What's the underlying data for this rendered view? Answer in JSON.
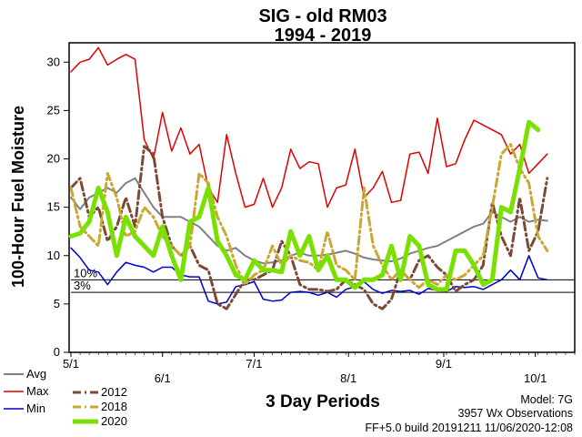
{
  "chart_data": {
    "type": "line",
    "title": "SIG - old RM03",
    "subtitle": "1994 - 2019",
    "ylabel": "100-Hour Fuel Moisture",
    "xlabel": "3 Day Periods",
    "ylim": [
      0,
      32
    ],
    "yticks": [
      0,
      5,
      10,
      15,
      20,
      25,
      30
    ],
    "xlim": [
      0,
      55
    ],
    "xticks": [
      {
        "label": "5/1",
        "x": 0
      },
      {
        "label": "6/1",
        "x": 10
      },
      {
        "label": "7/1",
        "x": 20
      },
      {
        "label": "8/1",
        "x": 30.3
      },
      {
        "label": "9/1",
        "x": 40.7
      },
      {
        "label": "10/1",
        "x": 50.7
      }
    ],
    "reference_lines": [
      {
        "label": "10%",
        "value": 7.5
      },
      {
        "label": "3%",
        "value": 6.2
      }
    ],
    "grid": false,
    "legend_left": [
      "Avg",
      "Max",
      "Min"
    ],
    "legend_right": [
      "2012",
      "2018",
      "2020"
    ],
    "series": [
      {
        "name": "Max",
        "color": "#e00000",
        "style": "solid",
        "width": 1.5,
        "values": [
          29,
          30,
          30.3,
          31.5,
          29.7,
          30.3,
          30.8,
          30.3,
          22,
          20,
          24.8,
          20.8,
          23.2,
          20.5,
          21.5,
          17,
          15.5,
          22.5,
          18.5,
          15,
          15.3,
          18,
          15,
          17,
          21,
          19,
          19.7,
          19.5,
          15,
          17,
          17.3,
          21,
          16,
          17,
          18.7,
          15.5,
          15.7,
          20.5,
          20.7,
          18.5,
          24.2,
          19.2,
          19.5,
          22,
          24,
          23.5,
          23,
          22.5,
          20.5,
          21.5,
          18.5,
          19.5,
          20.5
        ]
      },
      {
        "name": "Avg",
        "color": "#808080",
        "style": "solid",
        "width": 2,
        "values": [
          16,
          14.8,
          16,
          16.5,
          17,
          16.5,
          17.5,
          18,
          16.5,
          15,
          14,
          14,
          14,
          13.5,
          13,
          12,
          11,
          10.5,
          10.8,
          10,
          9.5,
          9.2,
          9.3,
          9.5,
          10,
          10.3,
          10,
          10,
          10.1,
          10.3,
          10.5,
          10.2,
          9.8,
          9.6,
          9.5,
          9.4,
          9.7,
          10.2,
          10.5,
          10.8,
          11,
          11.5,
          12,
          12.5,
          13,
          13.3,
          14.5,
          14,
          13.5,
          14,
          13.5,
          13.7,
          13.6
        ]
      },
      {
        "name": "Min",
        "color": "#0000cc",
        "style": "solid",
        "width": 1.5,
        "values": [
          10.8,
          9.8,
          8.5,
          8.3,
          7,
          8.3,
          9.3,
          9,
          8.8,
          8.3,
          8.8,
          8.8,
          8,
          7.8,
          7.8,
          5.3,
          5,
          5.2,
          6.8,
          7,
          7.3,
          5.5,
          5.3,
          5.4,
          6.2,
          6.3,
          6.2,
          5.9,
          6.2,
          5.7,
          6.5,
          6.8,
          7.3,
          6.5,
          6.1,
          6.4,
          6.3,
          6.4,
          6,
          6.6,
          6.4,
          6.3,
          6.8,
          6.7,
          6.8,
          6.5,
          7,
          7.5,
          8.5,
          7.5,
          10,
          7.7,
          7.5
        ]
      },
      {
        "name": "2012",
        "color": "#7b4a36",
        "style": "dashdot",
        "width": 3,
        "values": [
          17,
          18,
          14,
          15,
          11.5,
          13,
          16,
          13,
          21.3,
          20.5,
          14,
          11,
          10,
          11,
          9,
          8.5,
          5,
          4.5,
          6,
          7.5,
          7.5,
          8,
          8.5,
          11.5,
          10,
          7,
          6.5,
          6.5,
          6.3,
          6.5,
          7.5,
          7,
          6.5,
          5,
          4.5,
          5.5,
          8.5,
          7.5,
          9.5,
          10,
          8.8,
          8,
          6.3,
          7,
          7.5,
          9,
          15.5,
          12,
          10,
          16,
          10.5,
          12.5,
          18
        ]
      },
      {
        "name": "2018",
        "color": "#c8a832",
        "style": "dashdot",
        "width": 3,
        "values": [
          17,
          13,
          12,
          11,
          18.5,
          16,
          12,
          12.5,
          15,
          14,
          12,
          11,
          10,
          11,
          18.5,
          17.5,
          14,
          12,
          9,
          7,
          8,
          8.5,
          11,
          9,
          10,
          9.5,
          9.3,
          8.5,
          12.5,
          9,
          8.5,
          7.5,
          17,
          11,
          9,
          7.5,
          8.5,
          7.5,
          6.7,
          7.5,
          7,
          8,
          7.5,
          8,
          9,
          10,
          15,
          20.5,
          21.5,
          19,
          17.5,
          12,
          10.5
        ]
      },
      {
        "name": "2020",
        "color": "#7ae000",
        "style": "solid",
        "width": 5,
        "values": [
          12,
          12.3,
          13.5,
          17,
          14.5,
          10,
          14,
          12,
          11,
          10,
          13,
          10,
          7.5,
          13.5,
          14,
          17,
          11.5,
          10,
          8,
          7.5,
          9.5,
          8.5,
          8.5,
          8.3,
          12.5,
          10,
          12,
          8.5,
          10,
          7.5,
          7.5,
          6.7,
          7.5,
          7.5,
          8,
          11,
          7.5,
          12,
          11,
          7,
          6.5,
          6.5,
          10.5,
          10.5,
          9,
          7,
          7.5,
          15,
          14.5,
          19,
          23.8,
          23
        ]
      }
    ]
  },
  "info": {
    "model": "Model: 7G",
    "observations": "3957 Wx Observations",
    "build": "FF+5.0 build 20191211 11/06/2020-12:08"
  }
}
